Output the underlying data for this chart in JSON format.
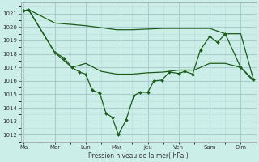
{
  "background_color": "#cceee8",
  "grid_color_major": "#aacccc",
  "grid_color_minor": "#c0ddda",
  "line_color": "#1a5c1a",
  "ylabel": "Pression niveau de la mer( hPa )",
  "ylim": [
    1011.5,
    1021.8
  ],
  "yticks": [
    1012,
    1013,
    1014,
    1015,
    1016,
    1017,
    1018,
    1019,
    1020,
    1021
  ],
  "x_major_labels": [
    "Ma",
    "Mer",
    "Lun",
    "Mar",
    "Jeu",
    "Ven",
    "Sam",
    "Dim"
  ],
  "x_major_pos": [
    0,
    1,
    2,
    3,
    4,
    5,
    6,
    7
  ],
  "xlim": [
    -0.1,
    7.5
  ],
  "line1_x": [
    0.0,
    0.15,
    1.0,
    2.0,
    3.0,
    3.5,
    4.0,
    4.5,
    5.0,
    5.5,
    6.0,
    6.5,
    7.0,
    7.4
  ],
  "line1_y": [
    1021.2,
    1021.3,
    1020.3,
    1020.1,
    1019.8,
    1019.8,
    1019.85,
    1019.9,
    1019.9,
    1019.9,
    1019.9,
    1019.5,
    1019.5,
    1016.2
  ],
  "line2_x": [
    0.0,
    0.15,
    1.0,
    1.3,
    1.55,
    1.8,
    2.0,
    2.2,
    2.45,
    2.65,
    2.85,
    3.05,
    3.3,
    3.55,
    3.75,
    4.0,
    4.2,
    4.45,
    4.7,
    5.0,
    5.2,
    5.45,
    5.7,
    6.0,
    6.25,
    6.5,
    7.0,
    7.4
  ],
  "line2_y": [
    1021.2,
    1021.3,
    1018.1,
    1017.7,
    1017.0,
    1016.65,
    1016.5,
    1015.3,
    1015.1,
    1013.6,
    1013.3,
    1012.0,
    1013.1,
    1014.9,
    1015.15,
    1015.15,
    1016.0,
    1016.05,
    1016.65,
    1016.55,
    1016.7,
    1016.5,
    1018.3,
    1019.3,
    1018.85,
    1019.5,
    1017.0,
    1016.1
  ],
  "line3_x": [
    0.0,
    0.15,
    1.0,
    1.55,
    2.0,
    2.5,
    3.0,
    3.5,
    4.0,
    4.5,
    5.0,
    5.5,
    6.0,
    6.5,
    7.0,
    7.4
  ],
  "line3_y": [
    1021.2,
    1021.3,
    1018.1,
    1017.0,
    1017.3,
    1016.7,
    1016.5,
    1016.5,
    1016.6,
    1016.65,
    1016.8,
    1016.8,
    1017.3,
    1017.3,
    1017.0,
    1016.0
  ]
}
